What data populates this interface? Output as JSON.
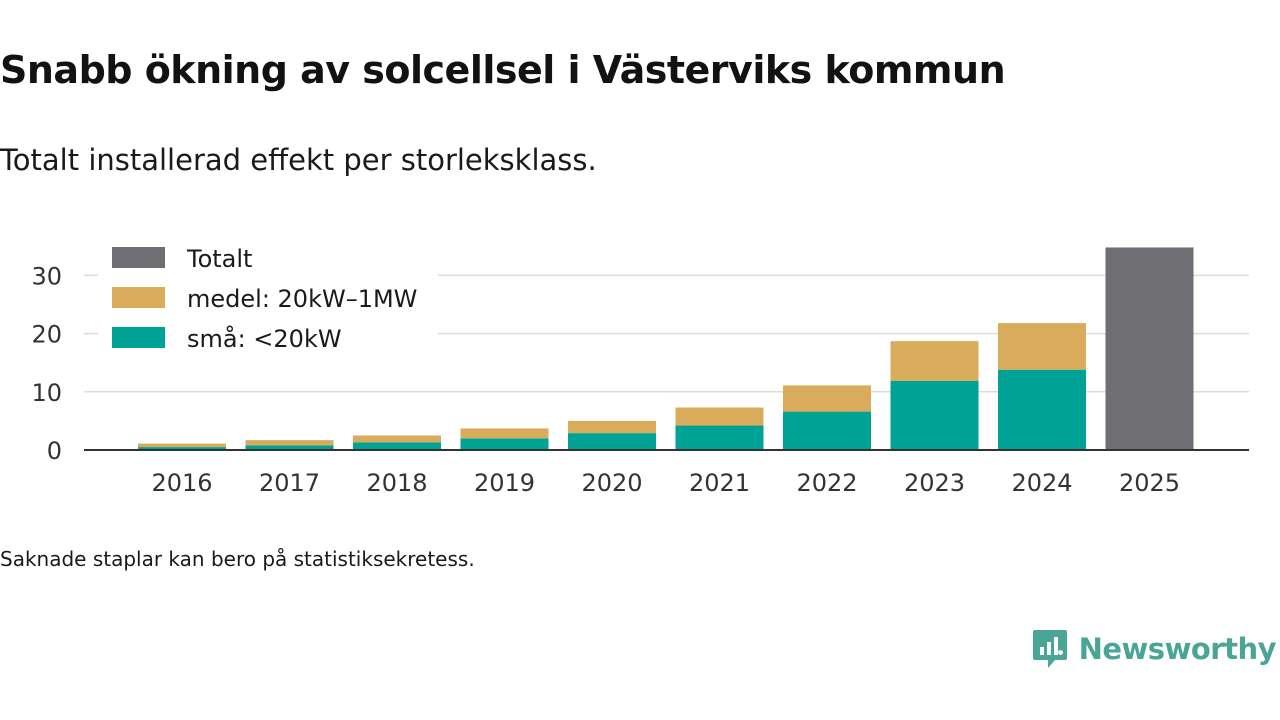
{
  "header": {
    "title": "Snabb ökning av solcellsel i Västerviks kommun",
    "subtitle": "Totalt installerad effekt per storleksklass."
  },
  "footer": {
    "note": "Saknade staplar kan bero på statistiksekretess.",
    "brand": "Newsworthy"
  },
  "colors": {
    "small": "#00a295",
    "medium": "#d8ac5a",
    "total": "#6f6e73",
    "grid": "#dcdcdc",
    "axis": "#333333",
    "brand": "#4aa596"
  },
  "chart_data": {
    "type": "bar",
    "stacked": true,
    "title": "Snabb ökning av solcellsel i Västerviks kommun",
    "subtitle": "Totalt installerad effekt per storleksklass.",
    "xlabel": "",
    "ylabel": "",
    "ylim": [
      0,
      36
    ],
    "yticks": [
      0,
      10,
      20,
      30
    ],
    "grid": true,
    "legend_position": "top-left",
    "categories": [
      "2016",
      "2017",
      "2018",
      "2019",
      "2020",
      "2021",
      "2022",
      "2023",
      "2024",
      "2025"
    ],
    "series": [
      {
        "name": "små: <20kW",
        "key": "small",
        "values": [
          0.5,
          0.8,
          1.3,
          2.0,
          2.9,
          4.2,
          6.6,
          11.9,
          13.8,
          null
        ]
      },
      {
        "name": "medel: 20kW–1MW",
        "key": "medium",
        "values": [
          0.6,
          0.9,
          1.2,
          1.7,
          2.1,
          3.1,
          4.5,
          6.8,
          8.0,
          null
        ]
      },
      {
        "name": "Totalt",
        "key": "total",
        "values": [
          null,
          null,
          null,
          null,
          null,
          null,
          null,
          null,
          null,
          34.8
        ]
      }
    ],
    "legend": [
      {
        "label": "Totalt",
        "key": "total"
      },
      {
        "label": "medel: 20kW–1MW",
        "key": "medium"
      },
      {
        "label": "små: <20kW",
        "key": "small"
      }
    ]
  }
}
